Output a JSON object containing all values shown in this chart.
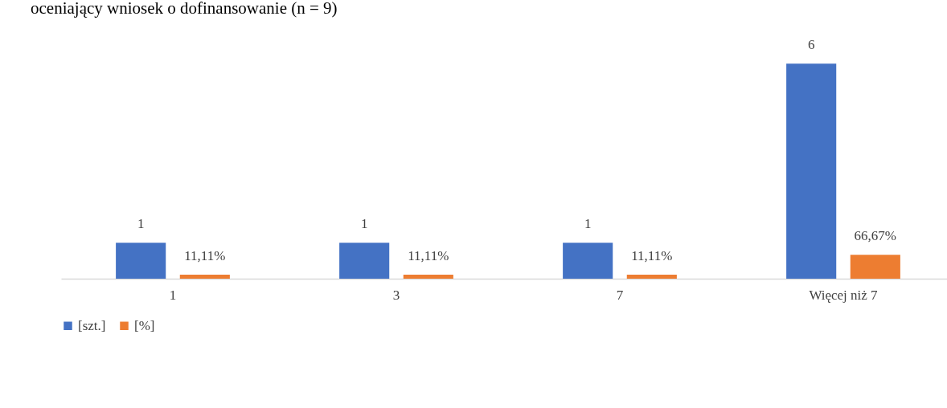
{
  "chart_data": {
    "type": "bar",
    "title": "oceniający wniosek o dofinansowanie (n = 9)",
    "categories": [
      "1",
      "3",
      "7",
      "Więcej niż 7"
    ],
    "series": [
      {
        "name": "[szt.]",
        "color": "#4472c4",
        "values": [
          1,
          1,
          1,
          6
        ],
        "value_labels": [
          "1",
          "1",
          "1",
          "6"
        ]
      },
      {
        "name": "[%]",
        "color": "#ed7d31",
        "values": [
          0.1111,
          0.1111,
          0.1111,
          0.6667
        ],
        "value_labels": [
          "11,11%",
          "11,11%",
          "11,11%",
          "66,67%"
        ]
      }
    ],
    "grid": false,
    "legend": "bottom"
  }
}
